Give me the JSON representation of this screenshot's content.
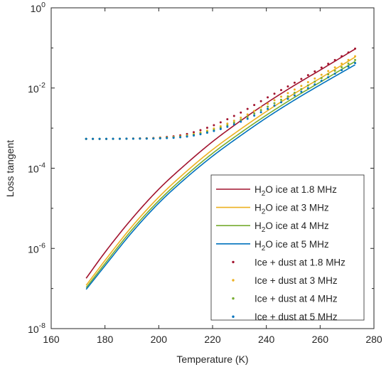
{
  "chart_data": {
    "type": "line",
    "xlabel": "Temperature (K)",
    "ylabel": "Loss tangent",
    "xlim": [
      160,
      280
    ],
    "ylim": [
      1e-08,
      1
    ],
    "yscale": "log",
    "grid": false,
    "legend_position": "lower-right",
    "x_ticks": [
      "160",
      "180",
      "200",
      "220",
      "240",
      "260",
      "280"
    ],
    "y_ticks": [
      {
        "base": "10",
        "exp": "0"
      },
      {
        "base": "10",
        "exp": "-2"
      },
      {
        "base": "10",
        "exp": "-4"
      },
      {
        "base": "10",
        "exp": "-6"
      },
      {
        "base": "10",
        "exp": "-8"
      }
    ],
    "x": [
      173,
      180,
      190,
      200,
      210,
      220,
      230,
      240,
      250,
      260,
      273
    ],
    "series": [
      {
        "legend_pre": "H",
        "legend_sub": "2",
        "legend_post": "O ice at 1.8 MHz",
        "style": "solid",
        "color": "#A2142F",
        "values": [
          1.8e-07,
          8e-07,
          5.5e-06,
          3e-05,
          0.000125,
          0.00046,
          0.00145,
          0.0042,
          0.0112,
          0.028,
          0.094
        ]
      },
      {
        "legend_pre": "H",
        "legend_sub": "2",
        "legend_post": "O ice at 3 MHz",
        "style": "solid",
        "color": "#EDB120",
        "values": [
          1.2e-07,
          5e-07,
          3.5e-06,
          1.9e-05,
          8e-05,
          0.00029,
          0.0009,
          0.0026,
          0.007,
          0.0175,
          0.059
        ]
      },
      {
        "legend_pre": "H",
        "legend_sub": "2",
        "legend_post": "O ice at 4 MHz",
        "style": "solid",
        "color": "#77AC30",
        "values": [
          1.05e-07,
          4.2e-07,
          2.9e-06,
          1.55e-05,
          6.5e-05,
          0.000235,
          0.00073,
          0.0021,
          0.0056,
          0.014,
          0.046
        ]
      },
      {
        "legend_pre": "H",
        "legend_sub": "2",
        "legend_post": "O ice at 5 MHz",
        "style": "solid",
        "color": "#0072BD",
        "values": [
          9.5e-08,
          3.7e-07,
          2.5e-06,
          1.35e-05,
          5.6e-05,
          0.0002,
          0.00062,
          0.0018,
          0.0048,
          0.012,
          0.038
        ]
      },
      {
        "legend_pre": "",
        "legend_sub": "",
        "legend_post": "Ice + dust at 1.8 MHz",
        "style": "dotted",
        "color": "#A2142F",
        "values": [
          0.00054,
          0.00054,
          0.00055,
          0.00058,
          0.0007,
          0.00115,
          0.00235,
          0.0056,
          0.013,
          0.031,
          0.096
        ]
      },
      {
        "legend_pre": "",
        "legend_sub": "",
        "legend_post": "Ice + dust at 3 MHz",
        "style": "dotted",
        "color": "#EDB120",
        "values": [
          0.00054,
          0.00054,
          0.00055,
          0.00057,
          0.00065,
          0.00095,
          0.00175,
          0.0039,
          0.0088,
          0.0205,
          0.062
        ]
      },
      {
        "legend_pre": "",
        "legend_sub": "",
        "legend_post": "Ice + dust at 4 MHz",
        "style": "dotted",
        "color": "#77AC30",
        "values": [
          0.00054,
          0.00054,
          0.000545,
          0.00056,
          0.00063,
          0.00088,
          0.00155,
          0.0033,
          0.0073,
          0.017,
          0.05
        ]
      },
      {
        "legend_pre": "",
        "legend_sub": "",
        "legend_post": "Ice + dust at 5 MHz",
        "style": "dotted",
        "color": "#0072BD",
        "values": [
          0.00054,
          0.00054,
          0.000545,
          0.000555,
          0.00061,
          0.00083,
          0.0014,
          0.0029,
          0.0063,
          0.0145,
          0.042
        ]
      }
    ]
  }
}
